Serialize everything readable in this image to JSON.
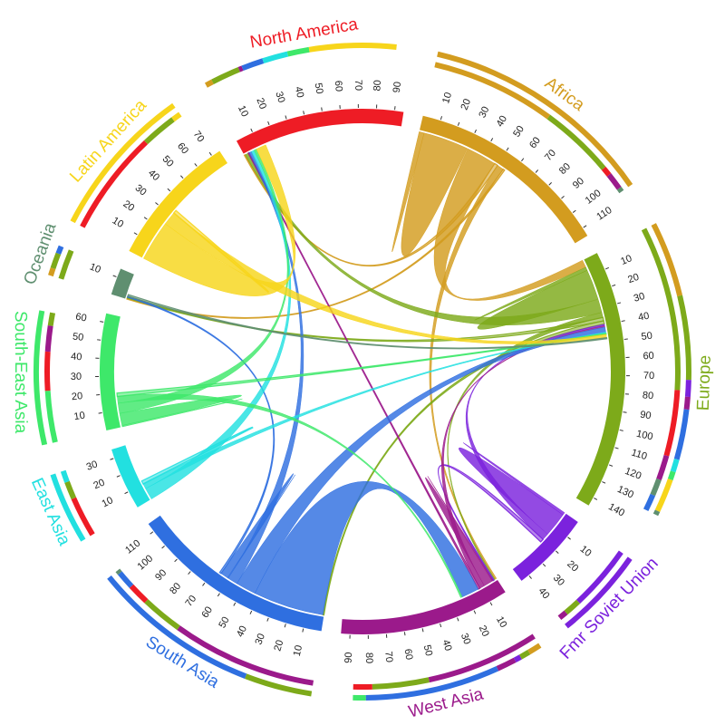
{
  "chart_data": {
    "type": "chord",
    "title": "",
    "tick_step": 10,
    "regions": [
      {
        "name": "North America",
        "color": "#ee1c25",
        "ticks": [
          10,
          20,
          30,
          40,
          50,
          60,
          70,
          80,
          90
        ]
      },
      {
        "name": "Africa",
        "color": "#d39c1f",
        "ticks": [
          10,
          20,
          30,
          40,
          50,
          60,
          70,
          80,
          90,
          100,
          110
        ]
      },
      {
        "name": "Europe",
        "color": "#7daa1a",
        "ticks": [
          10,
          20,
          30,
          40,
          50,
          60,
          70,
          80,
          90,
          100,
          110,
          120,
          130,
          140
        ]
      },
      {
        "name": "Fmr Soviet Union",
        "color": "#7b22dd",
        "ticks": [
          10,
          20,
          30,
          40
        ]
      },
      {
        "name": "West Asia",
        "color": "#9b1a8b",
        "ticks": [
          10,
          20,
          30,
          40,
          50,
          60,
          70,
          80,
          90
        ]
      },
      {
        "name": "South Asia",
        "color": "#2f6fe0",
        "ticks": [
          10,
          20,
          30,
          40,
          50,
          60,
          70,
          80,
          90,
          100,
          110
        ]
      },
      {
        "name": "East Asia",
        "color": "#22e0e0",
        "ticks": [
          10,
          20,
          30
        ]
      },
      {
        "name": "South-East Asia",
        "color": "#3ee86a",
        "ticks": [
          10,
          20,
          30,
          40,
          50,
          60
        ]
      },
      {
        "name": "Oceania",
        "color": "#5f8f70",
        "ticks": [
          10
        ]
      },
      {
        "name": "Latin America",
        "color": "#f7d51b",
        "ticks": [
          10,
          20,
          30,
          40,
          50,
          60,
          70
        ]
      }
    ],
    "flows": [
      {
        "from": "Africa",
        "to": "Africa",
        "value": 30
      },
      {
        "from": "Africa",
        "to": "Europe",
        "value": 18
      },
      {
        "from": "Africa",
        "to": "North America",
        "value": 2
      },
      {
        "from": "Africa",
        "to": "West Asia",
        "value": 4
      },
      {
        "from": "Africa",
        "to": "Oceania",
        "value": 1
      },
      {
        "from": "Europe",
        "to": "Europe",
        "value": 20
      },
      {
        "from": "Europe",
        "to": "North America",
        "value": 8
      },
      {
        "from": "Europe",
        "to": "West Asia",
        "value": 3
      },
      {
        "from": "Europe",
        "to": "Oceania",
        "value": 2
      },
      {
        "from": "Europe",
        "to": "South Asia",
        "value": 2
      },
      {
        "from": "Fmr Soviet Union",
        "to": "Fmr Soviet Union",
        "value": 16
      },
      {
        "from": "Fmr Soviet Union",
        "to": "Europe",
        "value": 4
      },
      {
        "from": "Fmr Soviet Union",
        "to": "West Asia",
        "value": 2
      },
      {
        "from": "West Asia",
        "to": "West Asia",
        "value": 6
      },
      {
        "from": "West Asia",
        "to": "Europe",
        "value": 3
      },
      {
        "from": "West Asia",
        "to": "North America",
        "value": 1
      },
      {
        "from": "South Asia",
        "to": "West Asia",
        "value": 42
      },
      {
        "from": "South Asia",
        "to": "Europe",
        "value": 12
      },
      {
        "from": "South Asia",
        "to": "North America",
        "value": 6
      },
      {
        "from": "South Asia",
        "to": "South Asia",
        "value": 5
      },
      {
        "from": "South Asia",
        "to": "Oceania",
        "value": 1
      },
      {
        "from": "East Asia",
        "to": "North America",
        "value": 7
      },
      {
        "from": "East Asia",
        "to": "Europe",
        "value": 3
      },
      {
        "from": "East Asia",
        "to": "East Asia",
        "value": 2
      },
      {
        "from": "South-East Asia",
        "to": "South-East Asia",
        "value": 8
      },
      {
        "from": "South-East Asia",
        "to": "North America",
        "value": 6
      },
      {
        "from": "South-East Asia",
        "to": "West Asia",
        "value": 4
      },
      {
        "from": "South-East Asia",
        "to": "Europe",
        "value": 2
      },
      {
        "from": "Latin America",
        "to": "North America",
        "value": 24
      },
      {
        "from": "Latin America",
        "to": "Europe",
        "value": 8
      },
      {
        "from": "Latin America",
        "to": "Latin America",
        "value": 2
      },
      {
        "from": "Oceania",
        "to": "Europe",
        "value": 1
      }
    ]
  }
}
